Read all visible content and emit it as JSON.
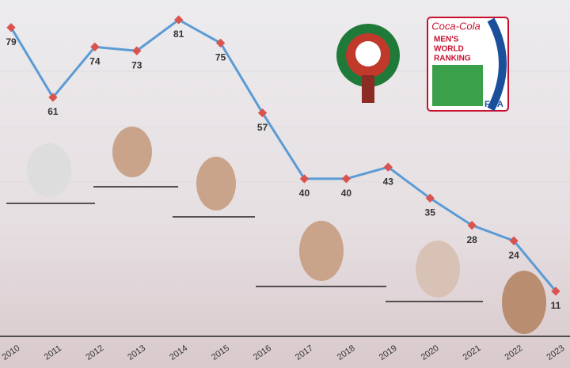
{
  "chart_data": {
    "type": "line",
    "categories": [
      "2010",
      "2011",
      "2012",
      "2013",
      "2014",
      "2015",
      "2016",
      "2017",
      "2018",
      "2019",
      "2020",
      "2021",
      "2022",
      "2023"
    ],
    "values": [
      79,
      61,
      74,
      73,
      81,
      75,
      57,
      40,
      40,
      43,
      35,
      28,
      24,
      11
    ],
    "color": "#5b9bd5",
    "marker_color": "#d9534f",
    "annotations": [
      "Coca-Cola",
      "MEN'S",
      "WORLD",
      "RANKING",
      "FIFA"
    ]
  }
}
